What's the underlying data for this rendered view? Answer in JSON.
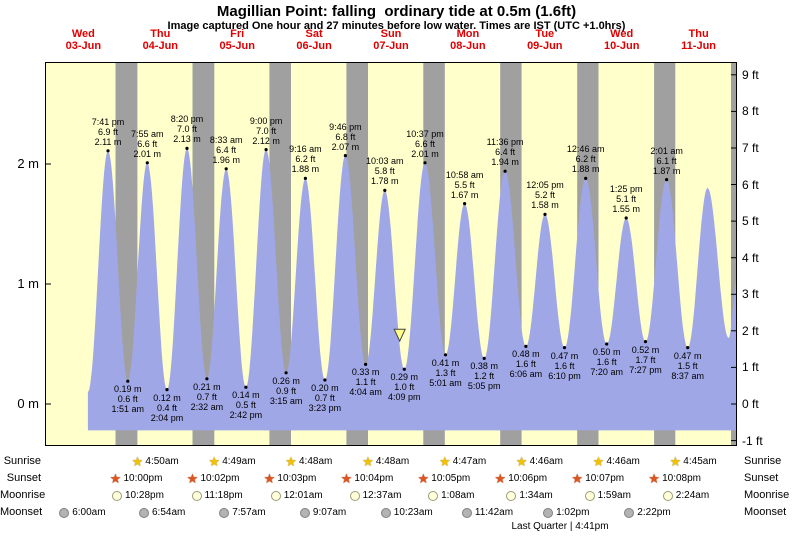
{
  "title": "Magillian Point: falling  ordinary tide at 0.5m (1.6ft)",
  "subtitle": "Image captured One hour and 27 minutes before low water. Times are IST (UTC +1.0hrs)",
  "days": [
    {
      "name": "Wed",
      "date": "03-Jun"
    },
    {
      "name": "Thu",
      "date": "04-Jun"
    },
    {
      "name": "Fri",
      "date": "05-Jun"
    },
    {
      "name": "Sat",
      "date": "06-Jun"
    },
    {
      "name": "Sun",
      "date": "07-Jun"
    },
    {
      "name": "Mon",
      "date": "08-Jun"
    },
    {
      "name": "Tue",
      "date": "09-Jun"
    },
    {
      "name": "Wed",
      "date": "10-Jun"
    },
    {
      "name": "Thu",
      "date": "11-Jun"
    }
  ],
  "colors": {
    "plot_bg": "#ffffcc",
    "night_band": "#a0a0a0",
    "tide_fill": "#a0a7e6",
    "day_label_red": "#e00000",
    "marker_fill": "#ffff88",
    "border": "#000000"
  },
  "axes": {
    "left_unit": "m",
    "right_unit": "ft",
    "left": [
      {
        "label": "0 m",
        "value": 0
      },
      {
        "label": "1 m",
        "value": 1
      },
      {
        "label": "2 m",
        "value": 2
      }
    ],
    "right": [
      {
        "label": "-1 ft",
        "value": -1
      },
      {
        "label": "0 ft",
        "value": 0
      },
      {
        "label": "1 ft",
        "value": 1
      },
      {
        "label": "2 ft",
        "value": 2
      },
      {
        "label": "3 ft",
        "value": 3
      },
      {
        "label": "4 ft",
        "value": 4
      },
      {
        "label": "5 ft",
        "value": 5
      },
      {
        "label": "6 ft",
        "value": 6
      },
      {
        "label": "7 ft",
        "value": 7
      },
      {
        "label": "8 ft",
        "value": 8
      },
      {
        "label": "9 ft",
        "value": 9
      }
    ]
  },
  "chart_data": {
    "type": "area",
    "title": "Tide height curve for Magillian Point, Wed 03-Jun to Thu 11-Jun",
    "x_unit": "hours from Wed 03-Jun 00:00",
    "x_range_hours": [
      0,
      216
    ],
    "y_unit": "m",
    "y_range_m": [
      -0.35,
      2.85
    ],
    "baseline_m": -0.22,
    "grid": false,
    "tide_events": [
      {
        "h": 13.4,
        "m": 0.1,
        "type": "edge"
      },
      {
        "h": 19.68,
        "m": 2.11,
        "type": "high",
        "time": "7:41 pm",
        "ft": "6.9 ft",
        "m_label": "2.11 m"
      },
      {
        "h": 25.85,
        "m": 0.19,
        "type": "low",
        "time": "1:51 am",
        "ft": "0.6 ft",
        "m_label": "0.19 m"
      },
      {
        "h": 31.92,
        "m": 2.01,
        "type": "high",
        "time": "7:55 am",
        "ft": "6.6 ft",
        "m_label": "2.01 m"
      },
      {
        "h": 38.07,
        "m": 0.12,
        "type": "low",
        "time": "2:04 pm",
        "ft": "0.4 ft",
        "m_label": "0.12 m"
      },
      {
        "h": 44.33,
        "m": 2.13,
        "type": "high",
        "time": "8:20 pm",
        "ft": "7.0 ft",
        "m_label": "2.13 m"
      },
      {
        "h": 50.53,
        "m": 0.21,
        "type": "low",
        "time": "2:32 am",
        "ft": "0.7 ft",
        "m_label": "0.21 m"
      },
      {
        "h": 56.55,
        "m": 1.96,
        "type": "high",
        "time": "8:33 am",
        "ft": "6.4 ft",
        "m_label": "1.96 m"
      },
      {
        "h": 62.7,
        "m": 0.14,
        "type": "low",
        "time": "2:42 pm",
        "ft": "0.5 ft",
        "m_label": "0.14 m"
      },
      {
        "h": 69.0,
        "m": 2.12,
        "type": "high",
        "time": "9:00 pm",
        "ft": "7.0 ft",
        "m_label": "2.12 m"
      },
      {
        "h": 75.25,
        "m": 0.26,
        "type": "low",
        "time": "3:15 am",
        "ft": "0.9 ft",
        "m_label": "0.26 m"
      },
      {
        "h": 81.27,
        "m": 1.88,
        "type": "high",
        "time": "9:16 am",
        "ft": "6.2 ft",
        "m_label": "1.88 m"
      },
      {
        "h": 87.38,
        "m": 0.2,
        "type": "low",
        "time": "3:23 pm",
        "ft": "0.7 ft",
        "m_label": "0.20 m"
      },
      {
        "h": 93.77,
        "m": 2.07,
        "type": "high",
        "time": "9:46 pm",
        "ft": "6.8 ft",
        "m_label": "2.07 m"
      },
      {
        "h": 100.07,
        "m": 0.33,
        "type": "low",
        "time": "4:04 am",
        "ft": "1.1 ft",
        "m_label": "0.33 m"
      },
      {
        "h": 106.05,
        "m": 1.78,
        "type": "high",
        "time": "10:03 am",
        "ft": "5.8 ft",
        "m_label": "1.78 m"
      },
      {
        "h": 112.15,
        "m": 0.29,
        "type": "low",
        "time": "4:09 pm",
        "ft": "1.0 ft",
        "m_label": "0.29 m"
      },
      {
        "h": 118.62,
        "m": 2.01,
        "type": "high",
        "time": "10:37 pm",
        "ft": "6.6 ft",
        "m_label": "2.01 m"
      },
      {
        "h": 125.02,
        "m": 0.41,
        "type": "low",
        "time": "5:01 am",
        "ft": "1.3 ft",
        "m_label": "0.41 m"
      },
      {
        "h": 130.97,
        "m": 1.67,
        "type": "high",
        "time": "10:58 am",
        "ft": "5.5 ft",
        "m_label": "1.67 m"
      },
      {
        "h": 137.08,
        "m": 0.38,
        "type": "low",
        "time": "5:05 pm",
        "ft": "1.2 ft",
        "m_label": "0.38 m"
      },
      {
        "h": 143.6,
        "m": 1.94,
        "type": "high",
        "time": "11:36 pm",
        "ft": "6.4 ft",
        "m_label": "1.94 m"
      },
      {
        "h": 150.1,
        "m": 0.48,
        "type": "low",
        "time": "6:06 am",
        "ft": "1.6 ft",
        "m_label": "0.48 m"
      },
      {
        "h": 156.08,
        "m": 1.58,
        "type": "high",
        "time": "12:05 pm",
        "ft": "5.2 ft",
        "m_label": "1.58 m"
      },
      {
        "h": 162.17,
        "m": 0.47,
        "type": "low",
        "time": "6:10 pm",
        "ft": "1.6 ft",
        "m_label": "0.47 m"
      },
      {
        "h": 168.77,
        "m": 1.88,
        "type": "high",
        "time": "12:46 am",
        "ft": "6.2 ft",
        "m_label": "1.88 m"
      },
      {
        "h": 175.33,
        "m": 0.5,
        "type": "low",
        "time": "7:20 am",
        "ft": "1.6 ft",
        "m_label": "0.50 m"
      },
      {
        "h": 181.42,
        "m": 1.55,
        "type": "high",
        "time": "1:25 pm",
        "ft": "5.1 ft",
        "m_label": "1.55 m"
      },
      {
        "h": 187.45,
        "m": 0.52,
        "type": "low",
        "time": "7:27 pm",
        "ft": "1.7 ft",
        "m_label": "0.52 m"
      },
      {
        "h": 194.02,
        "m": 1.87,
        "type": "high",
        "time": "2:01 am",
        "ft": "6.1 ft",
        "m_label": "1.87 m"
      },
      {
        "h": 200.62,
        "m": 0.47,
        "type": "low",
        "time": "8:37 am",
        "ft": "1.5 ft",
        "m_label": "0.47 m"
      },
      {
        "h": 206.8,
        "m": 1.8,
        "type": "edge"
      },
      {
        "h": 213.4,
        "m": 0.55,
        "type": "edge"
      },
      {
        "h": 216.0,
        "m": 1.05,
        "type": "edge"
      }
    ],
    "night_bands": [
      [
        22.0,
        28.83
      ],
      [
        46.03,
        52.82
      ],
      [
        70.05,
        76.8
      ],
      [
        94.07,
        100.8
      ],
      [
        118.08,
        124.78
      ],
      [
        142.1,
        148.77
      ],
      [
        166.12,
        172.77
      ],
      [
        190.13,
        196.75
      ],
      [
        214.13,
        216.0
      ]
    ],
    "current_marker": {
      "h": 110.7,
      "m": 0.49
    }
  },
  "astro": {
    "rows": [
      {
        "key": "sunrise",
        "label": "Sunrise",
        "icon": "sunrise-star-icon",
        "style": "star",
        "events": [
          {
            "time": "4:50am",
            "h": 28.83
          },
          {
            "time": "4:49am",
            "h": 52.82
          },
          {
            "time": "4:48am",
            "h": 76.8
          },
          {
            "time": "4:48am",
            "h": 100.8
          },
          {
            "time": "4:47am",
            "h": 124.78
          },
          {
            "time": "4:46am",
            "h": 148.77
          },
          {
            "time": "4:46am",
            "h": 172.77
          },
          {
            "time": "4:45am",
            "h": 196.75
          }
        ]
      },
      {
        "key": "sunset",
        "label": "Sunset",
        "icon": "sunset-star-icon",
        "style": "star",
        "events": [
          {
            "time": "10:00pm",
            "h": 22.0
          },
          {
            "time": "10:02pm",
            "h": 46.03
          },
          {
            "time": "10:03pm",
            "h": 70.05
          },
          {
            "time": "10:04pm",
            "h": 94.07
          },
          {
            "time": "10:05pm",
            "h": 118.08
          },
          {
            "time": "10:06pm",
            "h": 142.1
          },
          {
            "time": "10:07pm",
            "h": 166.12
          },
          {
            "time": "10:08pm",
            "h": 190.13
          }
        ]
      },
      {
        "key": "moonrise",
        "label": "Moonrise",
        "icon": "moonrise-circle-icon",
        "style": "circ",
        "events": [
          {
            "time": "10:28pm",
            "h": 22.47
          },
          {
            "time": "11:18pm",
            "h": 47.3
          },
          {
            "time": "12:01am",
            "h": 72.02
          },
          {
            "time": "12:37am",
            "h": 96.62
          },
          {
            "time": "1:08am",
            "h": 121.13
          },
          {
            "time": "1:34am",
            "h": 145.57
          },
          {
            "time": "1:59am",
            "h": 169.98
          },
          {
            "time": "2:24am",
            "h": 194.4
          }
        ]
      },
      {
        "key": "moonset",
        "label": "Moonset",
        "icon": "moonset-circle-icon",
        "style": "circ",
        "events": [
          {
            "time": "6:00am",
            "h": 6.0
          },
          {
            "time": "6:54am",
            "h": 30.9
          },
          {
            "time": "7:57am",
            "h": 55.95
          },
          {
            "time": "9:07am",
            "h": 81.12
          },
          {
            "time": "10:23am",
            "h": 106.38
          },
          {
            "time": "11:42am",
            "h": 131.7
          },
          {
            "time": "1:02pm",
            "h": 157.03
          },
          {
            "time": "2:22pm",
            "h": 182.37
          }
        ]
      }
    ],
    "moon_phase": "Last Quarter | 4:41pm"
  }
}
